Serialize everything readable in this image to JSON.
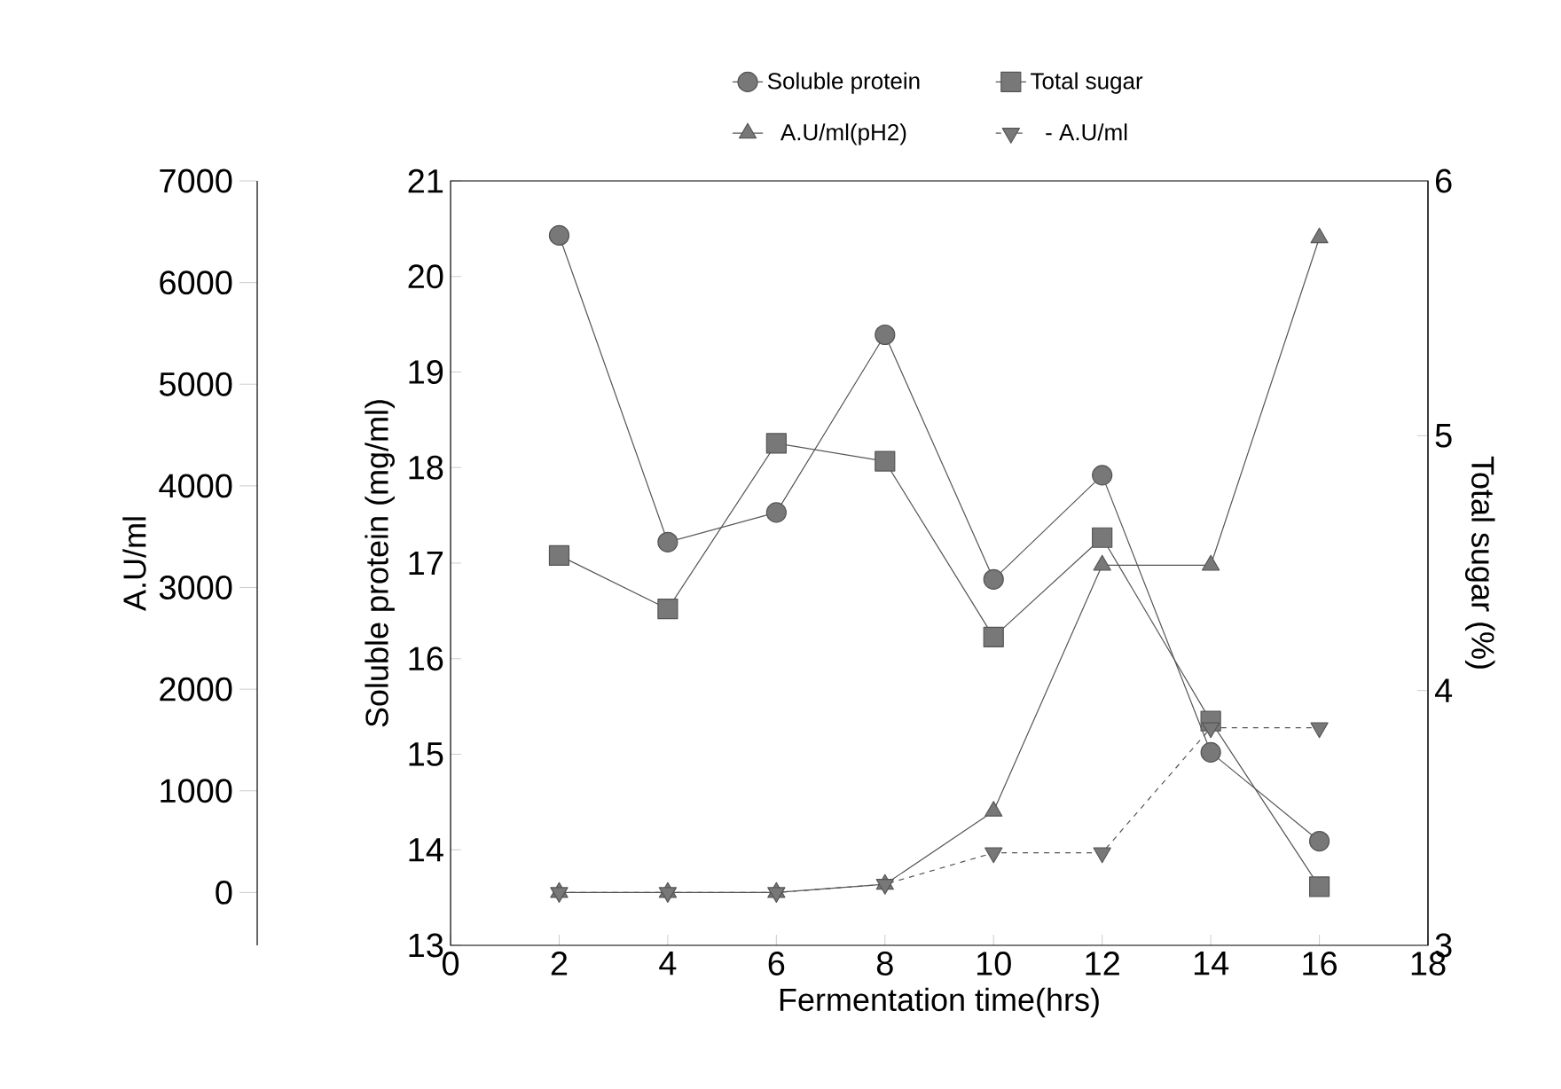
{
  "chart_data": {
    "type": "line",
    "xlabel": "Fermentation time(hrs)",
    "ylabel": "Soluble protein (mg/ml)",
    "y2label": "Total sugar (%)",
    "y3label": "A.U/ml",
    "x": [
      2,
      4,
      6,
      8,
      10,
      12,
      14,
      16
    ],
    "series": [
      {
        "name": "Soluble protein",
        "color": "#555555",
        "axis": "y",
        "marker": "circle",
        "line_style": "solid",
        "values": [
          20.43,
          17.22,
          17.53,
          19.39,
          16.83,
          17.92,
          15.02,
          14.09
        ]
      },
      {
        "name": "Total sugar",
        "color": "#555555",
        "axis": "y2",
        "marker": "square",
        "line_style": "solid",
        "values": [
          4.53,
          4.32,
          4.97,
          4.9,
          4.21,
          4.6,
          3.88,
          3.23
        ]
      },
      {
        "name": "A.U/ml(pH2)",
        "color": "#555555",
        "axis": "y3",
        "marker": "triangle",
        "line_style": "solid",
        "values": [
          0,
          0,
          0,
          80,
          800,
          3220,
          3220,
          6440
        ]
      },
      {
        "name": "- A.U/ml",
        "color": "#555555",
        "axis": "y3",
        "marker": "triangle-down",
        "line_style": "dashed",
        "values": [
          0,
          0,
          0,
          80,
          390,
          390,
          1620,
          1620
        ]
      }
    ],
    "xlim": [
      0,
      18
    ],
    "xticks": [
      0,
      2,
      4,
      6,
      8,
      10,
      12,
      14,
      16,
      18
    ],
    "ylim": [
      13,
      21
    ],
    "yticks": [
      13,
      14,
      15,
      16,
      17,
      18,
      19,
      20,
      21
    ],
    "y2lim": [
      3,
      6
    ],
    "y2ticks": [
      3,
      4,
      5,
      6
    ],
    "y3lim": [
      -520,
      7000
    ],
    "y3ticks": [
      0,
      1000,
      2000,
      3000,
      4000,
      5000,
      6000,
      7000
    ],
    "legend": "top"
  }
}
